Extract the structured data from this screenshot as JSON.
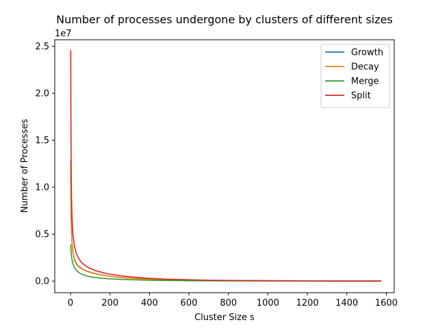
{
  "chart_data": {
    "type": "line",
    "title": "Number of processes undergone by clusters of different sizes",
    "xlabel": "Cluster Size s",
    "ylabel": "Number of Processes",
    "y_offset_label": "1e7",
    "xlim": [
      -80,
      1640
    ],
    "ylim": [
      -1230000.0,
      25700000.0
    ],
    "x_ticks": [
      0,
      200,
      400,
      600,
      800,
      1000,
      1200,
      1400,
      1600
    ],
    "y_ticks": [
      0,
      5000000,
      10000000,
      15000000,
      20000000,
      25000000
    ],
    "y_tick_labels": [
      "0.0",
      "0.5",
      "1.0",
      "1.5",
      "2.0",
      "2.5"
    ],
    "legend_position": "top-right",
    "grid": false,
    "series": [
      {
        "name": "Growth",
        "color": "#1f77b4",
        "x": [
          1,
          2,
          3,
          5,
          8,
          12,
          20,
          30,
          40,
          50,
          60,
          80,
          100,
          130,
          160,
          200,
          250,
          300,
          350,
          400,
          450,
          500,
          600,
          700,
          800,
          1000,
          1200,
          1400,
          1575
        ],
        "y": [
          12900000,
          9000000,
          7000000,
          5200000,
          4000000,
          3100000,
          2300000,
          1850000,
          1600000,
          1450000,
          1300000,
          1100000,
          950000,
          780000,
          650000,
          520000,
          400000,
          320000,
          260000,
          210000,
          175000,
          145000,
          100000,
          75000,
          55000,
          35000,
          22000,
          14000,
          10000
        ]
      },
      {
        "name": "Decay",
        "color": "#ff7f0e",
        "x": [
          1,
          2,
          3,
          5,
          8,
          12,
          20,
          30,
          40,
          50,
          60,
          80,
          100,
          130,
          160,
          200,
          250,
          300,
          350,
          400,
          450,
          500,
          600,
          700,
          800,
          1000,
          1200,
          1400,
          1575
        ],
        "y": [
          12400000,
          8700000,
          6800000,
          5000000,
          3850000,
          3000000,
          2200000,
          1780000,
          1540000,
          1400000,
          1260000,
          1070000,
          920000,
          760000,
          635000,
          510000,
          395000,
          315000,
          255000,
          205000,
          170000,
          140000,
          98000,
          72000,
          54000,
          34000,
          21000,
          13500,
          9500
        ]
      },
      {
        "name": "Merge",
        "color": "#2ca02c",
        "x": [
          1,
          2,
          3,
          5,
          8,
          12,
          20,
          30,
          40,
          50,
          60,
          80,
          100,
          130,
          160,
          200,
          250,
          300,
          350,
          400,
          450,
          500,
          600,
          700,
          800,
          1000,
          1200,
          1400,
          1575
        ],
        "y": [
          3900000,
          3300000,
          3000000,
          2600000,
          2200000,
          1850000,
          1450000,
          1150000,
          950000,
          810000,
          700000,
          560000,
          460000,
          370000,
          305000,
          245000,
          190000,
          150000,
          120000,
          95000,
          78000,
          64000,
          45000,
          33000,
          25000,
          15000,
          10000,
          7000,
          5000
        ]
      },
      {
        "name": "Split",
        "color": "#d62728",
        "x": [
          1,
          2,
          3,
          5,
          8,
          12,
          20,
          30,
          40,
          50,
          60,
          80,
          100,
          130,
          160,
          200,
          250,
          300,
          350,
          400,
          450,
          500,
          600,
          700,
          800,
          1000,
          1200,
          1400,
          1575
        ],
        "y": [
          24600000,
          17000000,
          12500000,
          8800000,
          6400000,
          5000000,
          3700000,
          2900000,
          2450000,
          2150000,
          1900000,
          1580000,
          1350000,
          1100000,
          920000,
          740000,
          580000,
          460000,
          370000,
          300000,
          245000,
          200000,
          140000,
          100000,
          75000,
          45000,
          28000,
          18000,
          12000
        ]
      }
    ]
  }
}
